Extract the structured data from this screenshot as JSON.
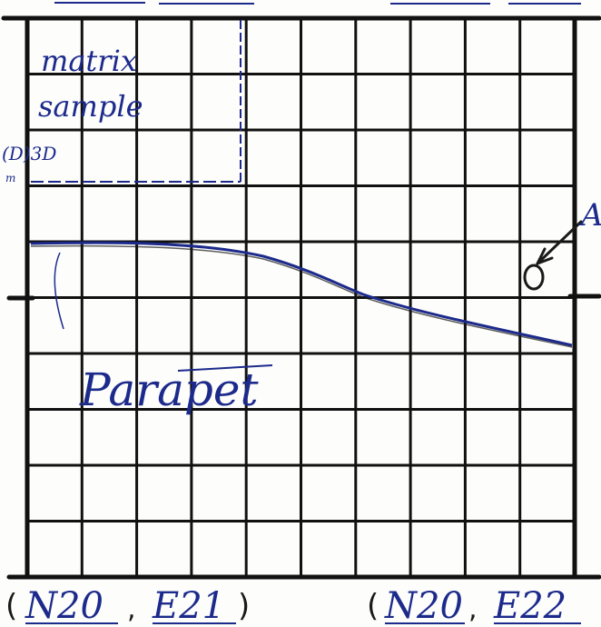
{
  "annotations": {
    "matrix_sample_line1": "matrix",
    "matrix_sample_line2": "sample",
    "depth_note": "(D)3D",
    "depth_note_sub": "m",
    "feature_label": "Parapet",
    "marker_letter": "A",
    "point_marker": "O"
  },
  "coordinates": {
    "bottom_left": {
      "open": "(",
      "north": "N20",
      "sep": ",",
      "east": "E21",
      "close": ")"
    },
    "bottom_right": {
      "open": "(",
      "north": "N20",
      "sep": ",",
      "east": "E22"
    }
  },
  "grid": {
    "columns": 10,
    "rows": 10
  },
  "colors": {
    "grid_ink": "#111111",
    "pen_ink": "#1c2a8c",
    "paper": "#fdfdfb"
  }
}
